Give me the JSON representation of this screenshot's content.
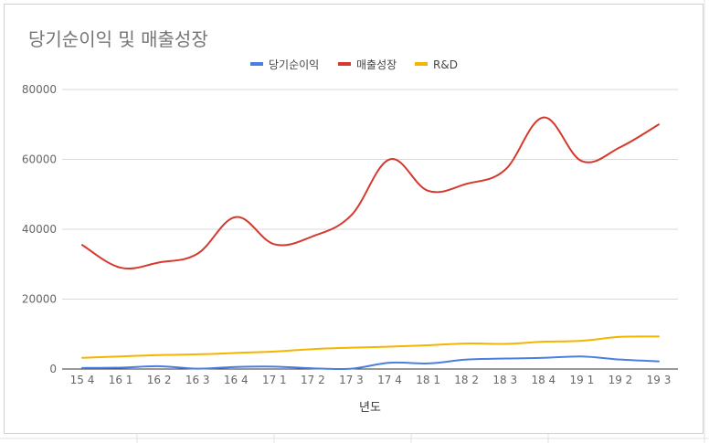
{
  "chart_data": {
    "type": "line",
    "title": "당기순이익 및 매출성장",
    "xlabel": "년도",
    "ylabel": "",
    "ylim": [
      0,
      80000
    ],
    "yticks": [
      "0",
      "20000",
      "40000",
      "60000",
      "80000"
    ],
    "grid": true,
    "legend_position": "top",
    "categories": [
      "15 4",
      "16 1",
      "16 2",
      "16 3",
      "16 4",
      "17 1",
      "17 2",
      "17 3",
      "17 4",
      "18 1",
      "18 2",
      "18 3",
      "18 4",
      "19 1",
      "19 2",
      "19 3"
    ],
    "series": [
      {
        "name": "당기순이익",
        "color": "#4a7fe0",
        "values": [
          300,
          400,
          800,
          100,
          600,
          700,
          200,
          100,
          1800,
          1600,
          2700,
          3000,
          3200,
          3600,
          2700,
          2200
        ]
      },
      {
        "name": "매출성장",
        "color": "#d5392c",
        "values": [
          35500,
          29000,
          30500,
          33000,
          43500,
          35700,
          38000,
          44000,
          60000,
          51000,
          53000,
          57000,
          72000,
          59500,
          63500,
          70000
        ]
      },
      {
        "name": "R&D",
        "color": "#f4b400",
        "values": [
          3200,
          3600,
          4000,
          4200,
          4600,
          5000,
          5700,
          6100,
          6400,
          6800,
          7300,
          7200,
          7800,
          8100,
          9200,
          9300
        ]
      }
    ]
  }
}
